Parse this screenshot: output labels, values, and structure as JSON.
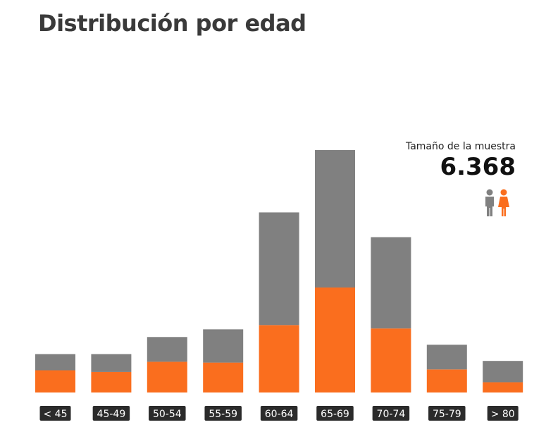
{
  "title": "Distribución por edad",
  "sample": {
    "label": "Tamaño de la muestra",
    "value": "6.368"
  },
  "colors": {
    "men": "#808080",
    "women": "#fa6e1e",
    "label_bg": "#2b2b2b"
  },
  "icons": [
    "man-icon",
    "woman-icon"
  ],
  "chart_data": {
    "type": "bar",
    "stacked": true,
    "title": "Distribución por edad",
    "categories": [
      "< 45",
      "45-49",
      "50-54",
      "55-59",
      "60-64",
      "65-69",
      "70-74",
      "75-79",
      "> 80"
    ],
    "series": [
      {
        "values": [
          2.6,
          2.4,
          3.6,
          3.5,
          7.9,
          12.3,
          7.5,
          2.7,
          1.2
        ],
        "color": "#fa6e1e"
      },
      {
        "values": [
          1.9,
          2.1,
          2.9,
          3.9,
          13.2,
          16.1,
          10.7,
          2.9,
          2.5
        ],
        "color": "#808080"
      }
    ],
    "ylim": [
      0,
      30
    ],
    "grid": false,
    "axes_visible": false
  }
}
